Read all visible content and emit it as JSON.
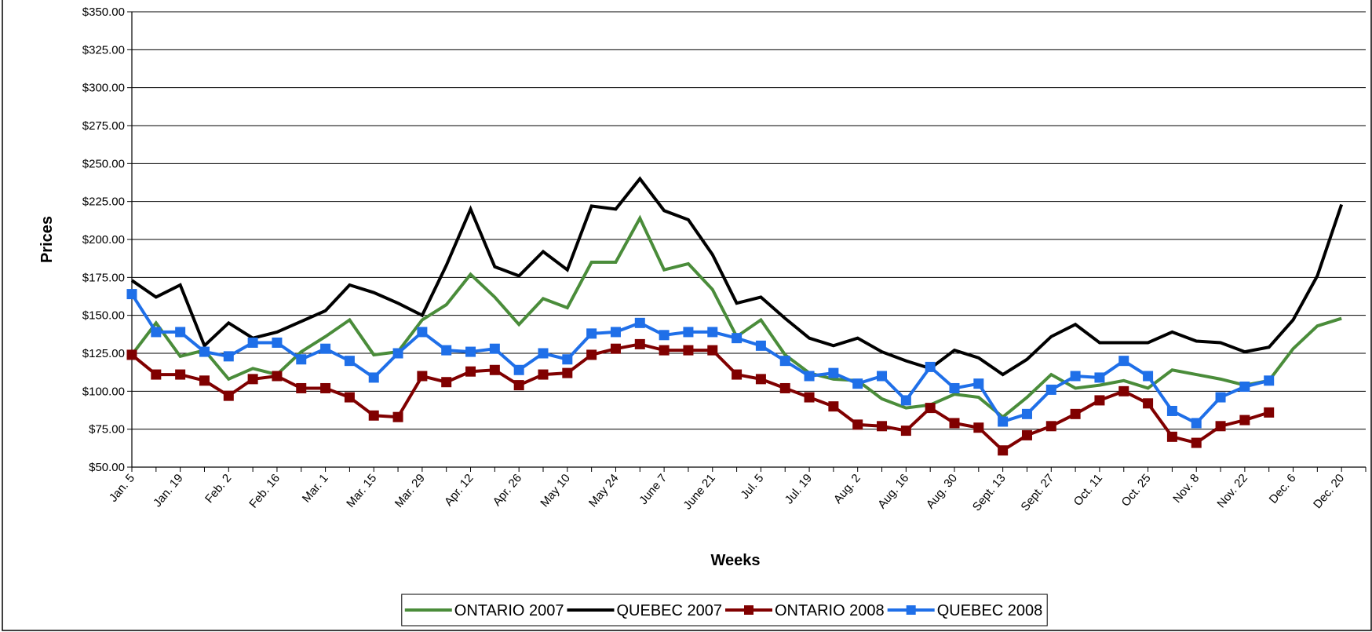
{
  "chart_data": {
    "type": "line",
    "x_label": "Weeks",
    "y_label": "Prices",
    "categories": [
      "Jan. 5",
      null,
      "Jan. 19",
      null,
      "Feb. 2",
      null,
      "Feb. 16",
      null,
      "Mar. 1",
      null,
      "Mar. 15",
      null,
      "Mar. 29",
      null,
      "Apr. 12",
      null,
      "Apr. 26",
      null,
      "May 10",
      null,
      "May 24",
      null,
      "June 7",
      null,
      "June 21",
      null,
      "Jul. 5",
      null,
      "Jul. 19",
      null,
      "Aug. 2",
      null,
      "Aug. 16",
      null,
      "Aug. 30",
      null,
      "Sept. 13",
      null,
      "Sept. 27",
      null,
      "Oct. 11",
      null,
      "Oct. 25",
      null,
      "Nov. 8",
      null,
      "Nov. 22",
      null,
      "Dec. 6",
      null,
      "Dec. 20",
      null
    ],
    "series": [
      {
        "name": "ONTARIO 2007",
        "color": "#4a8c3a",
        "marker": "none",
        "values": [
          124,
          145,
          123,
          127,
          108,
          115,
          111,
          126,
          136,
          147,
          124,
          126,
          147,
          157,
          177,
          162,
          144,
          161,
          155,
          185,
          185,
          214,
          180,
          184,
          167,
          136,
          147,
          124,
          112,
          108,
          107,
          95,
          89,
          91,
          98,
          96,
          83,
          96,
          111,
          102,
          104,
          107,
          102,
          114,
          111,
          108,
          104,
          107,
          128,
          143,
          148,
          null
        ]
      },
      {
        "name": "QUEBEC 2007",
        "color": "#000000",
        "marker": "none",
        "values": [
          173,
          162,
          170,
          130,
          145,
          135,
          139,
          146,
          153,
          170,
          165,
          158,
          150,
          183,
          220,
          182,
          176,
          192,
          180,
          222,
          220,
          240,
          219,
          213,
          190,
          158,
          162,
          148,
          135,
          130,
          135,
          126,
          120,
          115,
          127,
          122,
          111,
          121,
          136,
          144,
          132,
          132,
          132,
          139,
          133,
          132,
          126,
          129,
          147,
          176,
          223,
          null
        ]
      },
      {
        "name": "ONTARIO 2008",
        "color": "#800000",
        "marker": "square",
        "values": [
          124,
          111,
          111,
          107,
          97,
          108,
          110,
          102,
          102,
          96,
          84,
          83,
          110,
          106,
          113,
          114,
          104,
          111,
          112,
          124,
          128,
          131,
          127,
          127,
          127,
          111,
          108,
          102,
          96,
          90,
          78,
          77,
          74,
          89,
          79,
          76,
          61,
          71,
          77,
          85,
          94,
          100,
          92,
          70,
          66,
          77,
          81,
          86,
          null,
          null,
          null,
          null
        ]
      },
      {
        "name": "QUEBEC 2008",
        "color": "#1f6fe8",
        "marker": "square",
        "values": [
          164,
          139,
          139,
          126,
          123,
          132,
          132,
          121,
          128,
          120,
          109,
          125,
          139,
          127,
          126,
          128,
          114,
          125,
          121,
          138,
          139,
          145,
          137,
          139,
          139,
          135,
          130,
          120,
          110,
          112,
          105,
          110,
          94,
          116,
          102,
          105,
          80,
          85,
          101,
          110,
          109,
          120,
          110,
          87,
          79,
          96,
          103,
          107,
          null,
          null,
          null,
          null
        ]
      }
    ],
    "ylim": [
      50,
      350
    ],
    "yticks": [
      {
        "value": 50,
        "label": "$50.00"
      },
      {
        "value": 75,
        "label": "$75.00"
      },
      {
        "value": 100,
        "label": "$100.00"
      },
      {
        "value": 125,
        "label": "$125.00"
      },
      {
        "value": 150,
        "label": "$150.00"
      },
      {
        "value": 175,
        "label": "$175.00"
      },
      {
        "value": 200,
        "label": "$200.00"
      },
      {
        "value": 225,
        "label": "$225.00"
      },
      {
        "value": 250,
        "label": "$250.00"
      },
      {
        "value": 275,
        "label": "$275.00"
      },
      {
        "value": 300,
        "label": "$300.00"
      },
      {
        "value": 325,
        "label": "$325.00"
      },
      {
        "value": 350,
        "label": "$350.00"
      }
    ],
    "grid": true,
    "legend": "bottom"
  }
}
